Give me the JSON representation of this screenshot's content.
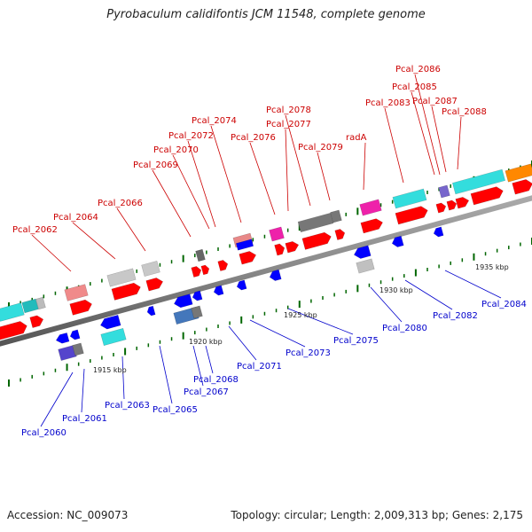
{
  "title": "Pyrobaculum calidifontis JCM 11548, complete genome",
  "footer": {
    "accession": "Accession: NC_009073",
    "stats": "Topology: circular; Length: 2,009,313 bp; Genes: 2,175"
  },
  "colors": {
    "forward_label": "#cc0000",
    "reverse_label": "#0000cc",
    "forward_gene": "#ff0000",
    "reverse_gene": "#0000ff",
    "backbone": "#888888",
    "tick": "#006600"
  },
  "kbp_labels": [
    "1915 kbp",
    "1920 kbp",
    "1925 kbp",
    "1930 kbp",
    "1935 kbp"
  ],
  "upper_labels": [
    "Pcal_2062",
    "Pcal_2064",
    "Pcal_2066",
    "Pcal_2069",
    "Pcal_2070",
    "Pcal_2072",
    "Pcal_2074",
    "Pcal_2076",
    "Pcal_2077",
    "Pcal_2078",
    "Pcal_2079",
    "radA",
    "Pcal_2083",
    "Pcal_2085",
    "Pcal_2086",
    "Pcal_2087",
    "Pcal_2088"
  ],
  "lower_labels": [
    "Pcal_2060",
    "Pcal_2061",
    "Pcal_2063",
    "Pcal_2065",
    "Pcal_2067",
    "Pcal_2068",
    "Pcal_2071",
    "Pcal_2073",
    "Pcal_2075",
    "Pcal_2080",
    "Pcal_2082",
    "Pcal_2084"
  ]
}
